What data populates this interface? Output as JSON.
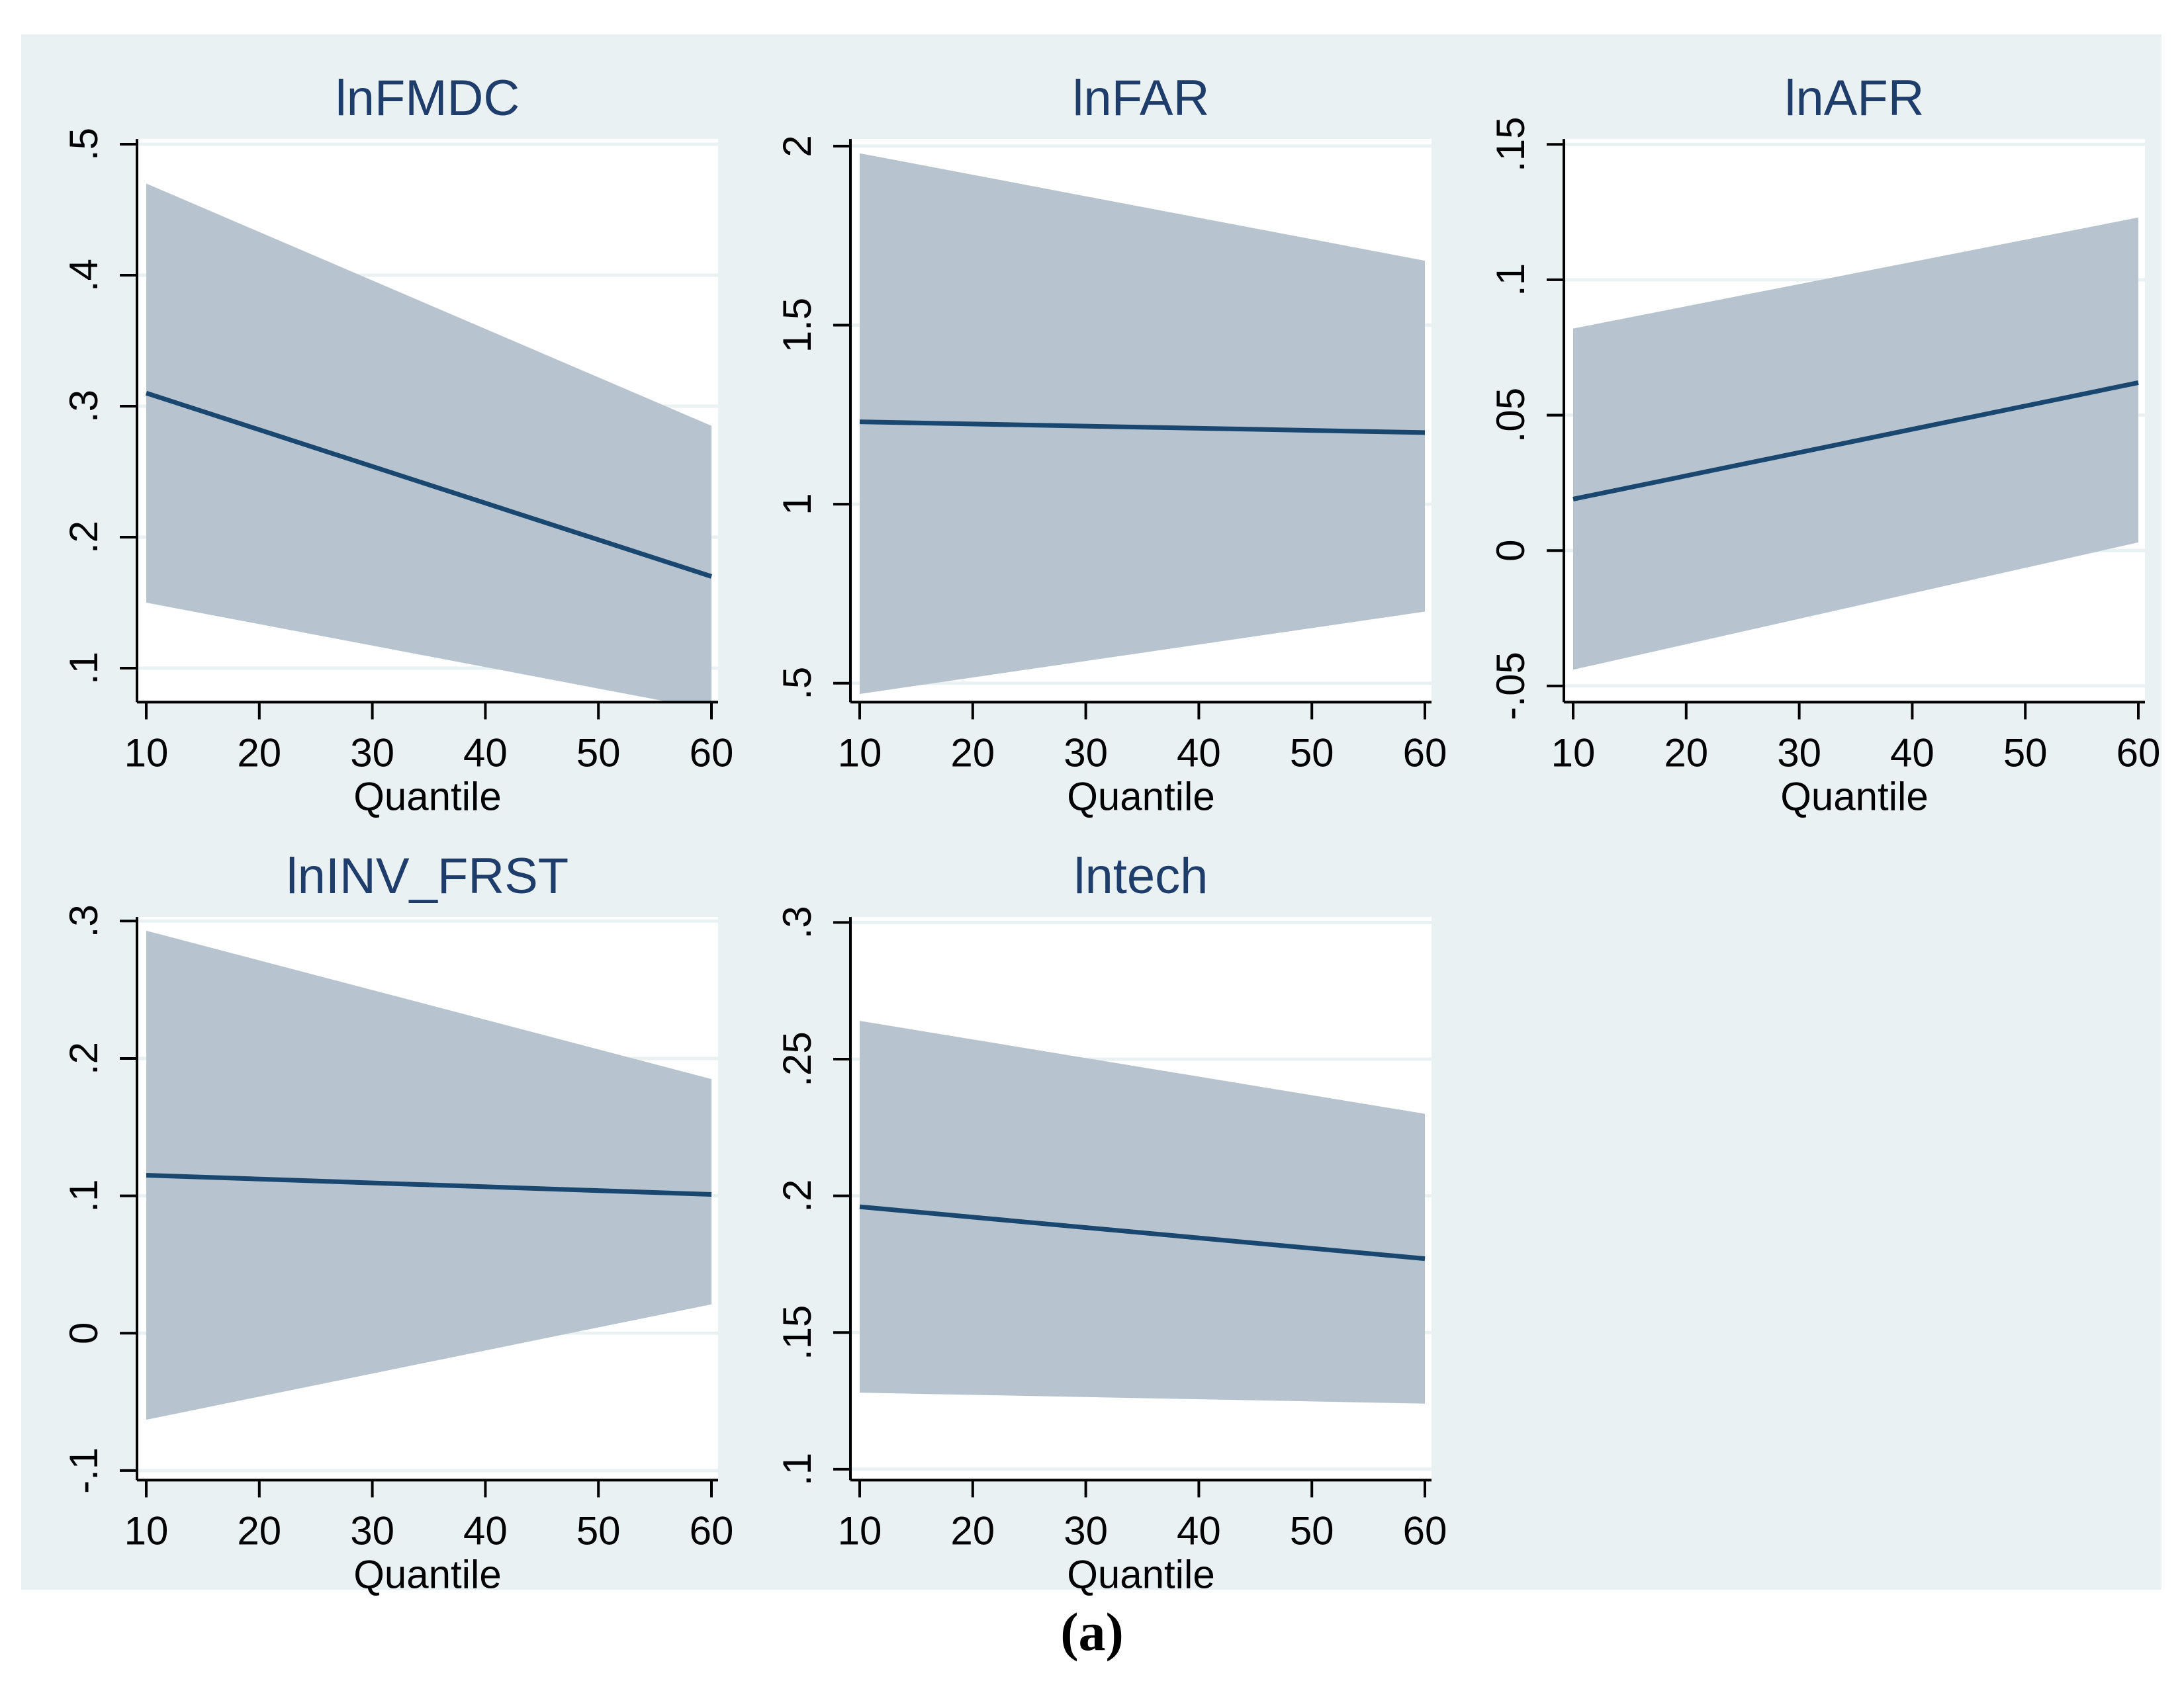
{
  "caption": {
    "text": "(a)"
  },
  "style": {
    "figure_background": "#eaf1f3",
    "plot_background": "#ffffff",
    "gridline_color": "#eaf1f3",
    "band_color": "#b7c4d0",
    "line_color": "#1a476f",
    "axis_color": "#000000",
    "title_color": "#1f3d6b",
    "tick_label_color": "#000000"
  },
  "chart_data": [
    {
      "type": "line",
      "title": "lnFMDC",
      "xlabel": "Quantile",
      "x_range": [
        10,
        60
      ],
      "x_ticks": [
        10,
        20,
        30,
        40,
        50,
        60
      ],
      "y_ticks": [
        0.1,
        0.2,
        0.3,
        0.4,
        0.5
      ],
      "y_tick_labels": [
        ".1",
        ".2",
        ".3",
        ".4",
        ".5"
      ],
      "ylim": [
        0.074,
        0.504
      ],
      "grid": "horizontal",
      "fit": {
        "x": [
          10,
          60
        ],
        "y": [
          0.31,
          0.17
        ]
      },
      "ci": {
        "x": [
          10,
          60
        ],
        "upper": [
          0.47,
          0.285
        ],
        "lower": [
          0.15,
          0.068
        ]
      }
    },
    {
      "type": "line",
      "title": "lnFAR",
      "xlabel": "Quantile",
      "x_range": [
        10,
        60
      ],
      "x_ticks": [
        10,
        20,
        30,
        40,
        50,
        60
      ],
      "y_ticks": [
        0.5,
        1,
        1.5,
        2
      ],
      "y_tick_labels": [
        ".5",
        "1",
        "1.5",
        "2"
      ],
      "ylim": [
        0.447,
        2.02
      ],
      "grid": "horizontal",
      "fit": {
        "x": [
          10,
          60
        ],
        "y": [
          1.23,
          1.2
        ]
      },
      "ci": {
        "x": [
          10,
          60
        ],
        "upper": [
          1.98,
          1.68
        ],
        "lower": [
          0.47,
          0.7
        ]
      }
    },
    {
      "type": "line",
      "title": "lnAFR",
      "xlabel": "Quantile",
      "x_range": [
        10,
        60
      ],
      "x_ticks": [
        10,
        20,
        30,
        40,
        50,
        60
      ],
      "y_ticks": [
        -0.05,
        0,
        0.05,
        0.1,
        0.15
      ],
      "y_tick_labels": [
        "-.05",
        "0",
        ".05",
        ".1",
        ".15"
      ],
      "ylim": [
        -0.056,
        0.152
      ],
      "grid": "horizontal",
      "fit": {
        "x": [
          10,
          60
        ],
        "y": [
          0.019,
          0.062
        ]
      },
      "ci": {
        "x": [
          10,
          60
        ],
        "upper": [
          0.082,
          0.123
        ],
        "lower": [
          -0.044,
          0.003
        ]
      }
    },
    {
      "type": "line",
      "title": "lnINV_FRST",
      "xlabel": "Quantile",
      "x_range": [
        10,
        60
      ],
      "x_ticks": [
        10,
        20,
        30,
        40,
        50,
        60
      ],
      "y_ticks": [
        -0.1,
        0,
        0.1,
        0.2,
        0.3
      ],
      "y_tick_labels": [
        "-.1",
        "0",
        ".1",
        ".2",
        ".3"
      ],
      "ylim": [
        -0.107,
        0.303
      ],
      "grid": "horizontal",
      "fit": {
        "x": [
          10,
          60
        ],
        "y": [
          0.115,
          0.101
        ]
      },
      "ci": {
        "x": [
          10,
          60
        ],
        "upper": [
          0.293,
          0.185
        ],
        "lower": [
          -0.063,
          0.021
        ]
      }
    },
    {
      "type": "line",
      "title": "lntech",
      "xlabel": "Quantile",
      "x_range": [
        10,
        60
      ],
      "x_ticks": [
        10,
        20,
        30,
        40,
        50,
        60
      ],
      "y_ticks": [
        0.1,
        0.15,
        0.2,
        0.25,
        0.3
      ],
      "y_tick_labels": [
        ".1",
        ".15",
        ".2",
        ".25",
        ".3"
      ],
      "ylim": [
        0.096,
        0.302
      ],
      "grid": "horizontal",
      "fit": {
        "x": [
          10,
          60
        ],
        "y": [
          0.196,
          0.177
        ]
      },
      "ci": {
        "x": [
          10,
          60
        ],
        "upper": [
          0.264,
          0.23
        ],
        "lower": [
          0.128,
          0.124
        ]
      }
    }
  ]
}
